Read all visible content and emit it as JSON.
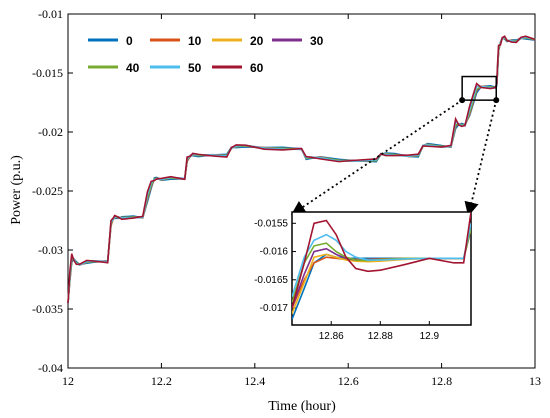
{
  "chart_data": {
    "type": "line",
    "xlabel": "Time (hour)",
    "ylabel": "Power  (p.u.)",
    "xlim": [
      12,
      13
    ],
    "ylim": [
      -0.04,
      -0.01
    ],
    "x_ticks": [
      12,
      12.2,
      12.4,
      12.6,
      12.8,
      13
    ],
    "x_tick_labels": [
      "12",
      "12.2",
      "12.4",
      "12.6",
      "12.8",
      "13"
    ],
    "y_ticks": [
      -0.04,
      -0.035,
      -0.03,
      -0.025,
      -0.02,
      -0.015,
      -0.01
    ],
    "y_tick_labels": [
      "-0.04",
      "-0.035",
      "-0.03",
      "-0.025",
      "-0.02",
      "-0.015",
      "-0.01"
    ],
    "grid": false,
    "legend_placement": "top-left",
    "baseline": {
      "x": [
        12.0,
        12.004,
        12.008,
        12.012,
        12.018,
        12.025,
        12.04,
        12.055,
        12.085,
        12.092,
        12.097,
        12.1,
        12.11,
        12.115,
        12.14,
        12.16,
        12.17,
        12.178,
        12.185,
        12.19,
        12.2,
        12.22,
        12.25,
        12.255,
        12.262,
        12.267,
        12.28,
        12.31,
        12.34,
        12.35,
        12.36,
        12.38,
        12.42,
        12.46,
        12.5,
        12.51,
        12.52,
        12.54,
        12.58,
        12.62,
        12.66,
        12.67,
        12.68,
        12.7,
        12.73,
        12.75,
        12.76,
        12.77,
        12.8,
        12.82,
        12.83,
        12.837,
        12.843,
        12.85,
        12.86,
        12.875,
        12.885,
        12.905,
        12.915,
        12.918,
        12.92,
        12.922,
        12.926,
        12.93,
        12.935,
        12.94,
        12.95,
        12.96,
        12.97,
        12.98,
        13.0
      ],
      "y": [
        -0.0345,
        -0.0325,
        -0.031,
        -0.0308,
        -0.0311,
        -0.0312,
        -0.031,
        -0.031,
        -0.031,
        -0.028,
        -0.0273,
        -0.0272,
        -0.0273,
        -0.0273,
        -0.0272,
        -0.0272,
        -0.0258,
        -0.0248,
        -0.024,
        -0.0239,
        -0.024,
        -0.0239,
        -0.024,
        -0.0226,
        -0.022,
        -0.0219,
        -0.022,
        -0.022,
        -0.022,
        -0.0213,
        -0.0212,
        -0.0212,
        -0.0214,
        -0.0214,
        -0.0214,
        -0.0222,
        -0.0222,
        -0.0222,
        -0.0224,
        -0.0224,
        -0.0224,
        -0.0219,
        -0.0219,
        -0.0219,
        -0.022,
        -0.022,
        -0.0212,
        -0.0211,
        -0.0212,
        -0.0212,
        -0.0196,
        -0.0194,
        -0.0194,
        -0.0194,
        -0.0185,
        -0.0166,
        -0.0162,
        -0.0162,
        -0.0162,
        -0.016,
        -0.0148,
        -0.0132,
        -0.0125,
        -0.012,
        -0.012,
        -0.0123,
        -0.0123,
        -0.0123,
        -0.012,
        -0.012,
        -0.0122
      ]
    },
    "series": [
      {
        "name": "0",
        "color": "#0072BD",
        "overshoot": 0.0
      },
      {
        "name": "10",
        "color": "#D95319",
        "overshoot": 0.1
      },
      {
        "name": "20",
        "color": "#EDB120",
        "overshoot": 0.15
      },
      {
        "name": "30",
        "color": "#7E2F8E",
        "overshoot": 0.2
      },
      {
        "name": "40",
        "color": "#77AC30",
        "overshoot": 0.3
      },
      {
        "name": "50",
        "color": "#4DBEEE",
        "overshoot": 0.55
      },
      {
        "name": "60",
        "color": "#A2142F",
        "overshoot": 0.85
      }
    ],
    "inset": {
      "xlim": [
        12.844,
        12.917
      ],
      "ylim": [
        -0.0173,
        -0.0153
      ],
      "x_ticks": [
        12.86,
        12.88,
        12.9
      ],
      "x_tick_labels": [
        "12.86",
        "12.88",
        "12.9"
      ],
      "y_ticks": [
        -0.017,
        -0.0165,
        -0.016,
        -0.0155
      ],
      "y_tick_labels": [
        "-0.017",
        "-0.0165",
        "-0.016",
        "-0.0155"
      ],
      "zoom_box": {
        "x": [
          12.844,
          12.917
        ],
        "y": [
          -0.0173,
          -0.0153
        ]
      },
      "series_points": [
        {
          "x": [
            12.844,
            12.849,
            12.853,
            12.858,
            12.862,
            12.866,
            12.87,
            12.875,
            12.88,
            12.89,
            12.9,
            12.91,
            12.914,
            12.917
          ],
          "y": [
            -0.0172,
            -0.01665,
            -0.0162,
            -0.01605,
            -0.0161,
            -0.01612,
            -0.01612,
            -0.01612,
            -0.01612,
            -0.01612,
            -0.01612,
            -0.01612,
            -0.01612,
            -0.0156
          ]
        },
        {
          "x": [
            12.844,
            12.849,
            12.853,
            12.858,
            12.862,
            12.866,
            12.87,
            12.875,
            12.88,
            12.89,
            12.9,
            12.91,
            12.914,
            12.917
          ],
          "y": [
            -0.017,
            -0.0165,
            -0.0162,
            -0.0161,
            -0.01612,
            -0.01614,
            -0.01614,
            -0.01614,
            -0.01613,
            -0.01612,
            -0.01612,
            -0.01612,
            -0.01612,
            -0.0156
          ]
        },
        {
          "x": [
            12.844,
            12.849,
            12.853,
            12.858,
            12.862,
            12.866,
            12.87,
            12.875,
            12.88,
            12.89,
            12.9,
            12.91,
            12.914,
            12.917
          ],
          "y": [
            -0.0171,
            -0.01655,
            -0.0161,
            -0.01605,
            -0.0161,
            -0.01615,
            -0.01617,
            -0.01618,
            -0.01617,
            -0.01614,
            -0.01612,
            -0.01612,
            -0.01612,
            -0.0156
          ]
        },
        {
          "x": [
            12.844,
            12.849,
            12.853,
            12.858,
            12.862,
            12.866,
            12.87,
            12.875,
            12.88,
            12.89,
            12.9,
            12.91,
            12.914,
            12.917
          ],
          "y": [
            -0.017,
            -0.0164,
            -0.016,
            -0.01595,
            -0.01605,
            -0.01612,
            -0.01615,
            -0.01615,
            -0.01614,
            -0.01612,
            -0.01612,
            -0.01612,
            -0.01612,
            -0.0156
          ]
        },
        {
          "x": [
            12.844,
            12.849,
            12.853,
            12.858,
            12.862,
            12.866,
            12.87,
            12.875,
            12.88,
            12.89,
            12.9,
            12.91,
            12.914,
            12.917
          ],
          "y": [
            -0.0169,
            -0.0162,
            -0.0159,
            -0.01585,
            -0.016,
            -0.0161,
            -0.01615,
            -0.01616,
            -0.01614,
            -0.01612,
            -0.01612,
            -0.01612,
            -0.01612,
            -0.0156
          ]
        },
        {
          "x": [
            12.844,
            12.849,
            12.853,
            12.858,
            12.862,
            12.866,
            12.87,
            12.875,
            12.88,
            12.89,
            12.9,
            12.91,
            12.914,
            12.917
          ],
          "y": [
            -0.0168,
            -0.0161,
            -0.0158,
            -0.0157,
            -0.0158,
            -0.016,
            -0.0161,
            -0.01615,
            -0.01615,
            -0.01613,
            -0.01612,
            -0.01612,
            -0.01612,
            -0.0155
          ]
        },
        {
          "x": [
            12.844,
            12.849,
            12.853,
            12.858,
            12.862,
            12.866,
            12.87,
            12.875,
            12.88,
            12.89,
            12.9,
            12.91,
            12.914,
            12.917
          ],
          "y": [
            -0.017,
            -0.0162,
            -0.0155,
            -0.01545,
            -0.0157,
            -0.0161,
            -0.0163,
            -0.01635,
            -0.01633,
            -0.01623,
            -0.01612,
            -0.0162,
            -0.0162,
            -0.0153
          ]
        }
      ]
    }
  }
}
